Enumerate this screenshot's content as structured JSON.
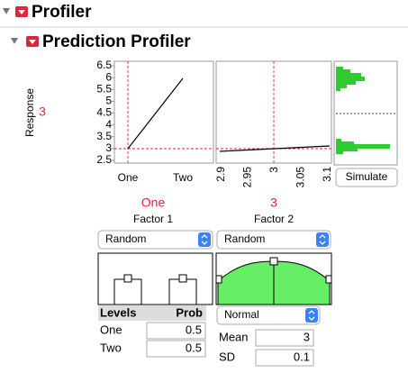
{
  "sections": {
    "profiler": "Profiler",
    "prediction_profiler": "Prediction Profiler"
  },
  "profiler": {
    "y_label": "Response",
    "y_value": "3",
    "y_ticks": [
      "6.5",
      "6",
      "5.5",
      "5",
      "4.5",
      "4",
      "3.5",
      "3",
      "2.5"
    ],
    "factors": [
      {
        "ticks": [
          "One",
          "Two"
        ],
        "current": "One",
        "name": "Factor 1",
        "mode": "Random"
      },
      {
        "ticks": [
          "2.9",
          "2.95",
          "3",
          "3.05",
          "3.1"
        ],
        "current": "3",
        "name": "Factor 2",
        "mode": "Random",
        "distribution": "Normal"
      }
    ],
    "simulate": "Simulate"
  },
  "factor1_table": {
    "headers": [
      "Levels",
      "Prob"
    ],
    "rows": [
      [
        "One",
        "0.5"
      ],
      [
        "Two",
        "0.5"
      ]
    ]
  },
  "factor2_params": {
    "rows": [
      [
        "Mean",
        "3"
      ],
      [
        "SD",
        "0.1"
      ]
    ]
  }
}
